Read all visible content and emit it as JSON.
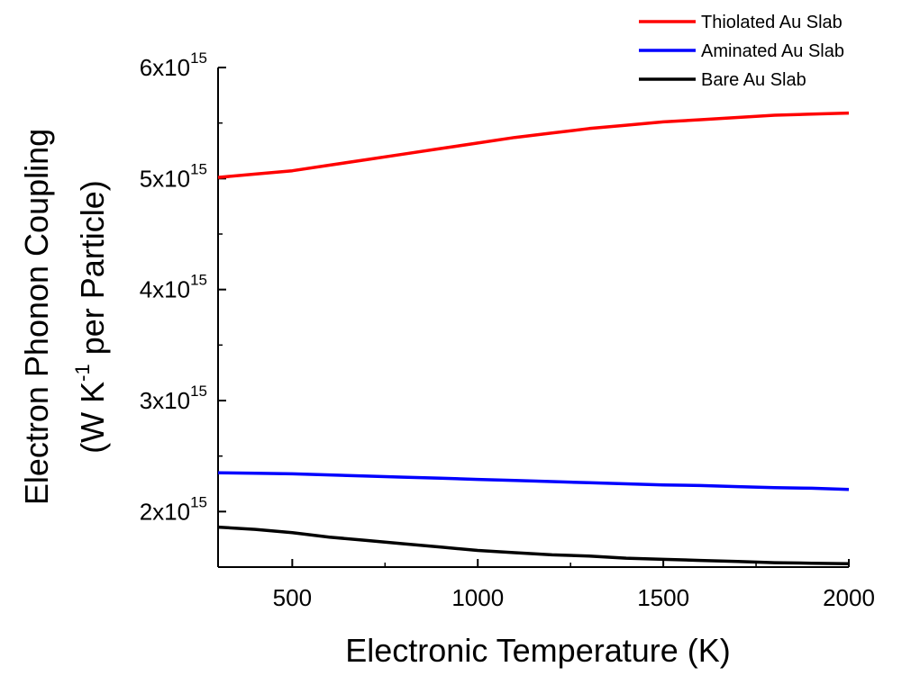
{
  "chart_data": {
    "type": "line",
    "xlabel": "Electronic Temperature (K)",
    "ylabel_line1": "Electron Phonon Coupling",
    "ylabel_line2": "(W K-1 per Particle)",
    "xlim": [
      300,
      2000
    ],
    "ylim": [
      1500000000000000.0,
      6000000000000000.0
    ],
    "x_ticks": [
      500,
      1000,
      1500,
      2000
    ],
    "y_ticks": [
      {
        "value": 2000000000000000.0,
        "mantissa": "2x10",
        "exp": "15"
      },
      {
        "value": 3000000000000000.0,
        "mantissa": "3x10",
        "exp": "15"
      },
      {
        "value": 4000000000000000.0,
        "mantissa": "4x10",
        "exp": "15"
      },
      {
        "value": 5000000000000000.0,
        "mantissa": "5x10",
        "exp": "15"
      },
      {
        "value": 6000000000000000.0,
        "mantissa": "6x10",
        "exp": "15"
      }
    ],
    "x": [
      300,
      400,
      500,
      600,
      700,
      800,
      900,
      1000,
      1100,
      1200,
      1300,
      1400,
      1500,
      1600,
      1700,
      1800,
      1900,
      2000
    ],
    "series": [
      {
        "name": "Thiolated Au Slab",
        "color": "#ff0000",
        "values": [
          5010000000000000.0,
          5040000000000000.0,
          5070000000000000.0,
          5120000000000000.0,
          5170000000000000.0,
          5220000000000000.0,
          5270000000000000.0,
          5320000000000000.0,
          5370000000000000.0,
          5410000000000000.0,
          5450000000000000.0,
          5480000000000000.0,
          5510000000000000.0,
          5530000000000000.0,
          5550000000000000.0,
          5570000000000000.0,
          5580000000000000.0,
          5590000000000000.0
        ]
      },
      {
        "name": "Aminated Au Slab",
        "color": "#0000ff",
        "values": [
          2350000000000000.0,
          2345000000000000.0,
          2340000000000000.0,
          2330000000000000.0,
          2320000000000000.0,
          2310000000000000.0,
          2300000000000000.0,
          2290000000000000.0,
          2280000000000000.0,
          2270000000000000.0,
          2260000000000000.0,
          2250000000000000.0,
          2240000000000000.0,
          2235000000000000.0,
          2225000000000000.0,
          2215000000000000.0,
          2210000000000000.0,
          2200000000000000.0
        ]
      },
      {
        "name": "Bare Au Slab",
        "color": "#000000",
        "values": [
          1860000000000000.0,
          1840000000000000.0,
          1810000000000000.0,
          1770000000000000.0,
          1740000000000000.0,
          1710000000000000.0,
          1680000000000000.0,
          1650000000000000.0,
          1630000000000000.0,
          1610000000000000.0,
          1600000000000000.0,
          1580000000000000.0,
          1570000000000000.0,
          1560000000000000.0,
          1550000000000000.0,
          1540000000000000.0,
          1535000000000000.0,
          1530000000000000.0
        ]
      }
    ],
    "legend": "top-right",
    "grid": false
  }
}
